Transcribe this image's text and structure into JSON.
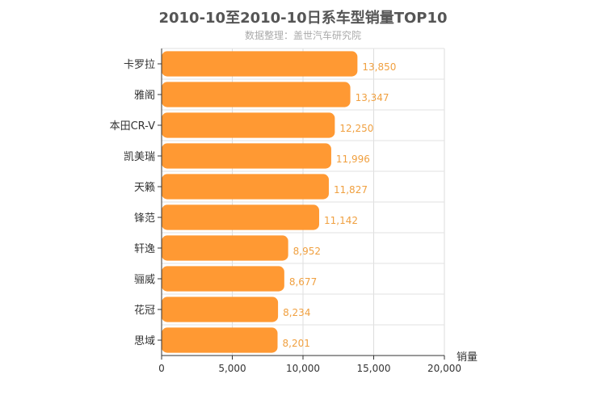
{
  "header": {
    "title": "2010-10至2010-10日系车型销量TOP10",
    "subtitle": "数据整理：盖世汽车研究院"
  },
  "chart_data": {
    "type": "bar",
    "orientation": "horizontal",
    "title": "2010-10至2010-10日系车型销量TOP10",
    "subtitle": "数据整理：盖世汽车研究院",
    "xlabel": "销量",
    "ylabel": "",
    "categories": [
      "卡罗拉",
      "雅阁",
      "本田CR-V",
      "凯美瑞",
      "天籁",
      "锋范",
      "轩逸",
      "骊威",
      "花冠",
      "思域"
    ],
    "values": [
      13850,
      13347,
      12250,
      11996,
      11827,
      11142,
      8952,
      8677,
      8234,
      8201
    ],
    "value_labels": [
      "13,850",
      "13,347",
      "12,250",
      "11,996",
      "11,827",
      "11,142",
      "8,952",
      "8,677",
      "8,234",
      "8,201"
    ],
    "xlim": [
      0,
      20000
    ],
    "ticks": [
      0,
      5000,
      10000,
      15000,
      20000
    ],
    "tick_labels": [
      "0",
      "5,000",
      "10,000",
      "15,000",
      "20,000"
    ],
    "grid": true,
    "bar_color": "#ff9933"
  }
}
